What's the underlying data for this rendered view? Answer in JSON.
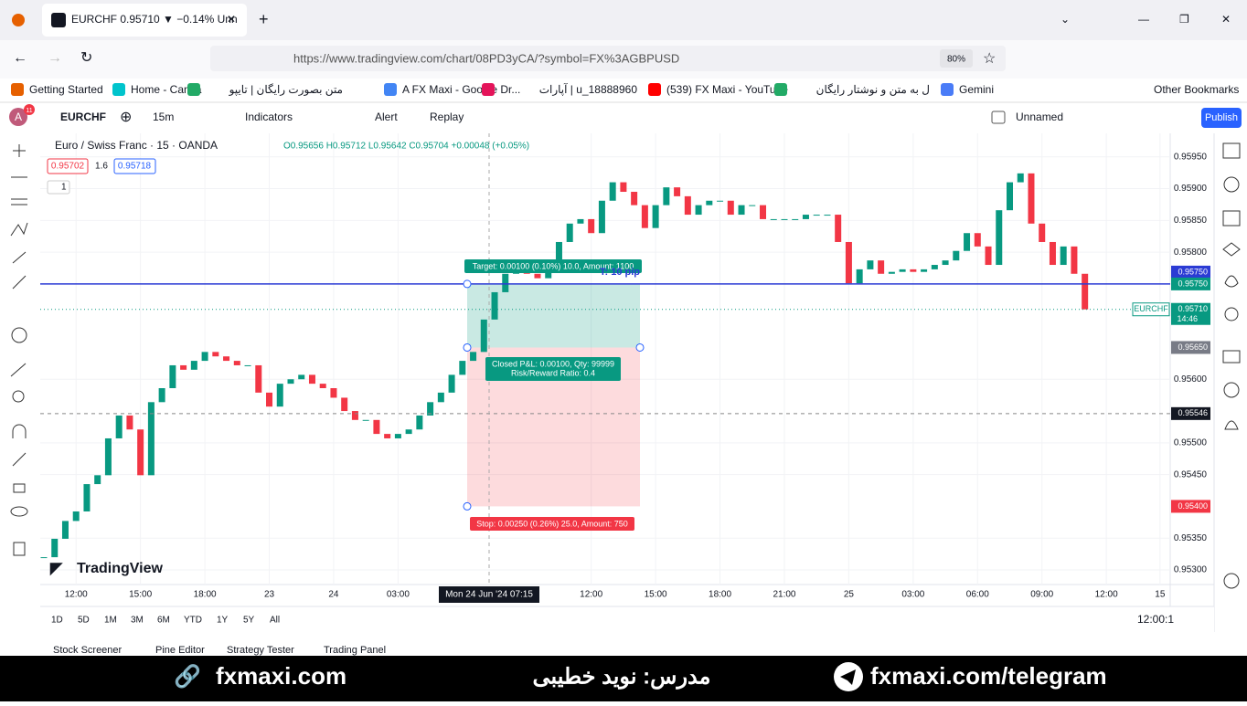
{
  "browser": {
    "tab_title": "EURCHF 0.95710 ▼ −0.14% Unn",
    "url": "https://www.tradingview.com/chart/08PD3yCA/?symbol=FX%3AGBPUSD",
    "zoom": "80%",
    "bookmarks": [
      "Getting Started",
      "Home - Canva",
      "متن بصورت رایگان | تایپو",
      "A FX Maxi - Google Dr...",
      "آپارات | u_18888960",
      "(539) FX Maxi - YouTube",
      "ل به متن و نوشتار رایگان",
      "Gemini"
    ],
    "other_bookmarks": "Other Bookmarks"
  },
  "toolbar": {
    "avatar": "A",
    "badge": "11",
    "symbol": "EURCHF",
    "interval": "15m",
    "indicators": "Indicators",
    "alert": "Alert",
    "replay": "Replay",
    "layout": "Unnamed",
    "publish": "Publish"
  },
  "chart_data": {
    "type": "candlestick",
    "title": "Euro / Swiss Franc · 15 · OANDA",
    "ohlc": "O0.95656 H0.95712 L0.95642 C0.95704 +0.00048 (+0.05%)",
    "bid": "0.95702",
    "spread": "1.6",
    "ask": "0.95718",
    "collapse": "1",
    "logo": "TradingView",
    "up_color": "#089981",
    "down_color": "#f23645",
    "values": [
      0.9532,
      0.95349,
      0.95377,
      0.95392,
      0.95435,
      0.95449,
      0.95507,
      0.95543,
      0.95521,
      0.95449,
      0.95564,
      0.95586,
      0.95622,
      0.95615,
      0.95629,
      0.95643,
      0.95636,
      0.95629,
      0.95622,
      0.95622,
      0.95579,
      0.95557,
      0.95593,
      0.956,
      0.95607,
      0.95593,
      0.95586,
      0.95571,
      0.9555,
      0.95536,
      0.95536,
      0.95514,
      0.95507,
      0.95514,
      0.95521,
      0.95543,
      0.95564,
      0.95579,
      0.95607,
      0.95629,
      0.95643,
      0.95694,
      0.95737,
      0.95766,
      0.9578,
      0.95766,
      0.95759,
      0.9578,
      0.95816,
      0.95845,
      0.95852,
      0.9583,
      0.95881,
      0.9591,
      0.95895,
      0.95874,
      0.95838,
      0.95874,
      0.95902,
      0.95888,
      0.95859,
      0.95874,
      0.95881,
      0.95881,
      0.95859,
      0.95874,
      0.95874,
      0.95852,
      0.95852,
      0.95852,
      0.95852,
      0.95859,
      0.95859,
      0.95859,
      0.95816,
      0.95751,
      0.95773,
      0.95787,
      0.95766,
      0.95769,
      0.95773,
      0.95769,
      0.95773,
      0.9578,
      0.95787,
      0.95802,
      0.9583,
      0.95809,
      0.9578,
      0.95866,
      0.9591,
      0.95924,
      0.95845,
      0.95816,
      0.9578,
      0.95809,
      0.95766,
      0.9571
    ],
    "xlim": [
      -0.25,
      104.7
    ],
    "ylim": [
      0.95277,
      0.95987
    ],
    "yticks": [
      {
        "value": 0.9595,
        "label": "0.95950"
      },
      {
        "value": 0.959,
        "label": "0.95900"
      },
      {
        "value": 0.9585,
        "label": "0.95850"
      },
      {
        "value": 0.958,
        "label": "0.95800"
      },
      {
        "value": 0.956,
        "label": "0.95600"
      },
      {
        "value": 0.955,
        "label": "0.95500"
      },
      {
        "value": 0.9545,
        "label": "0.95450"
      },
      {
        "value": 0.9535,
        "label": "0.95350"
      },
      {
        "value": 0.953,
        "label": "0.95300"
      }
    ],
    "xticks": [
      {
        "value": 3,
        "label": "12:00"
      },
      {
        "value": 9,
        "label": "15:00"
      },
      {
        "value": 15,
        "label": "18:00"
      },
      {
        "value": 21,
        "label": "23"
      },
      {
        "value": 27,
        "label": "24"
      },
      {
        "value": 33,
        "label": "03:00"
      },
      {
        "value": 51,
        "label": "12:00"
      },
      {
        "value": 57,
        "label": "15:00"
      },
      {
        "value": 63,
        "label": "18:00"
      },
      {
        "value": 69,
        "label": "21:00"
      },
      {
        "value": 75,
        "label": "25"
      },
      {
        "value": 81,
        "label": "03:00"
      },
      {
        "value": 87,
        "label": "06:00"
      },
      {
        "value": 93,
        "label": "09:00"
      },
      {
        "value": 99,
        "label": "12:00"
      },
      {
        "value": 104,
        "label": "15"
      }
    ],
    "hline": {
      "value": 0.9575,
      "label": "0.95750"
    },
    "target_price": {
      "value": 0.9575,
      "label": "0.95750"
    },
    "entry_price": {
      "value": 0.9565,
      "label": "0.95650"
    },
    "stop_price": {
      "value": 0.954,
      "label": "0.95400"
    },
    "last_price": {
      "value": 0.9571,
      "label": "0.95710"
    },
    "last_time": "14:46",
    "crosshair_price": {
      "value": 0.95546,
      "label": "0.95546"
    },
    "crosshair_time": "Mon 24 Jun '24 07:15",
    "target_label": "Target: 0.00100 (0.10%) 10.0, Amount: 1100",
    "target_note": "T: 10 pip",
    "pnl_label": "Closed P&L: 0.00100, Qty: 99999",
    "ratio_label": "Risk/Reward Ratio: 0.4",
    "stop_label": "Stop: 0.00250 (0.26%) 25.0, Amount: 750"
  },
  "bottom": {
    "ranges": [
      "1D",
      "5D",
      "1M",
      "3M",
      "6M",
      "YTD",
      "1Y",
      "5Y",
      "All"
    ],
    "clock": "12:00:1",
    "tabs": [
      "Stock Screener",
      "Pine Editor",
      "Strategy Tester",
      "Trading Panel"
    ]
  },
  "footer": {
    "site": "fxmaxi.com",
    "teacher": "مدرس: نوید خطیبی",
    "telegram": "fxmaxi.com/telegram"
  }
}
